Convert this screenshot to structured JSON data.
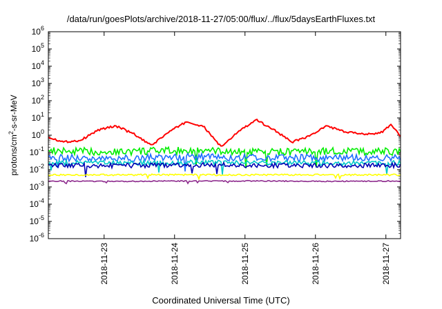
{
  "chart_data": {
    "type": "line",
    "title": "/data/run/goesPlots/archive/2018-11-27/05:00/flux/../flux/5daysEarthFluxes.txt",
    "xlabel": "Coordinated Universal Time (UTC)",
    "ylabel_parts": {
      "base": "protons/cm",
      "sup": "2",
      "rest": "-s-sr-MeV"
    },
    "y_scale": "log",
    "ylim": [
      1e-06,
      1000000.0
    ],
    "y_ticks": [
      {
        "exp": "-6",
        "value": 1e-06
      },
      {
        "exp": "-5",
        "value": 1e-05
      },
      {
        "exp": "-4",
        "value": 0.0001
      },
      {
        "exp": "-3",
        "value": 0.001
      },
      {
        "exp": "-2",
        "value": 0.01
      },
      {
        "exp": "-1",
        "value": 0.1
      },
      {
        "exp": "0",
        "value": 1
      },
      {
        "exp": "1",
        "value": 10
      },
      {
        "exp": "2",
        "value": 100
      },
      {
        "exp": "3",
        "value": 1000
      },
      {
        "exp": "4",
        "value": 10000
      },
      {
        "exp": "5",
        "value": 100000
      },
      {
        "exp": "6",
        "value": 1000000
      }
    ],
    "x_range": [
      "2018-11-22T05:00",
      "2018-11-27T05:00"
    ],
    "x_ticks": [
      "2018-11-23",
      "2018-11-24",
      "2018-11-25",
      "2018-11-26",
      "2018-11-27"
    ],
    "grid": false,
    "legend": "none",
    "series": [
      {
        "color": "#ff0000",
        "x": [
          "2018-11-22T05:00",
          "2018-11-22T10:00",
          "2018-11-22T16:00",
          "2018-11-22T22:00",
          "2018-11-23T04:00",
          "2018-11-23T10:00",
          "2018-11-23T16:00",
          "2018-11-23T22:00",
          "2018-11-24T04:00",
          "2018-11-24T10:00",
          "2018-11-24T16:00",
          "2018-11-24T22:00",
          "2018-11-25T04:00",
          "2018-11-25T10:00",
          "2018-11-25T16:00",
          "2018-11-25T22:00",
          "2018-11-26T04:00",
          "2018-11-26T10:00",
          "2018-11-26T16:00",
          "2018-11-26T22:00",
          "2018-11-27T02:00",
          "2018-11-27T05:00"
        ],
        "values": [
          0.8,
          0.4,
          0.5,
          2.0,
          3.5,
          1.2,
          0.25,
          1.5,
          6.0,
          3.0,
          0.2,
          1.8,
          7.5,
          2.0,
          0.4,
          0.9,
          3.5,
          1.5,
          1.2,
          1.3,
          4.0,
          0.9
        ]
      },
      {
        "color": "#00ee00",
        "x": [
          "2018-11-22T05:00",
          "2018-11-23T05:00",
          "2018-11-24T05:00",
          "2018-11-25T05:00",
          "2018-11-26T05:00",
          "2018-11-27T05:00"
        ],
        "values": [
          0.12,
          0.11,
          0.13,
          0.1,
          0.12,
          0.11
        ]
      },
      {
        "color": "#1e6eff",
        "x": [
          "2018-11-22T05:00",
          "2018-11-23T05:00",
          "2018-11-24T05:00",
          "2018-11-25T05:00",
          "2018-11-26T05:00",
          "2018-11-27T05:00"
        ],
        "values": [
          0.05,
          0.045,
          0.055,
          0.05,
          0.048,
          0.05
        ]
      },
      {
        "color": "#00c8c8",
        "x": [
          "2018-11-22T05:00",
          "2018-11-23T05:00",
          "2018-11-24T05:00",
          "2018-11-25T05:00",
          "2018-11-26T05:00",
          "2018-11-27T05:00"
        ],
        "values": [
          0.025,
          0.024,
          0.026,
          0.025,
          0.024,
          0.025
        ]
      },
      {
        "color": "#0000b4",
        "x": [
          "2018-11-22T05:00",
          "2018-11-23T05:00",
          "2018-11-24T05:00",
          "2018-11-25T05:00",
          "2018-11-26T05:00",
          "2018-11-27T05:00"
        ],
        "values": [
          0.018,
          0.017,
          0.019,
          0.018,
          0.017,
          0.018
        ]
      },
      {
        "color": "#ffff00",
        "x": [
          "2018-11-22T05:00",
          "2018-11-23T05:00",
          "2018-11-24T05:00",
          "2018-11-25T05:00",
          "2018-11-26T05:00",
          "2018-11-27T05:00"
        ],
        "values": [
          0.005,
          0.005,
          0.005,
          0.005,
          0.005,
          0.005
        ]
      },
      {
        "color": "#8c288c",
        "x": [
          "2018-11-22T05:00",
          "2018-11-23T05:00",
          "2018-11-24T05:00",
          "2018-11-25T05:00",
          "2018-11-26T05:00",
          "2018-11-27T05:00"
        ],
        "values": [
          0.0022,
          0.0021,
          0.0022,
          0.0022,
          0.0021,
          0.0022
        ]
      }
    ]
  }
}
